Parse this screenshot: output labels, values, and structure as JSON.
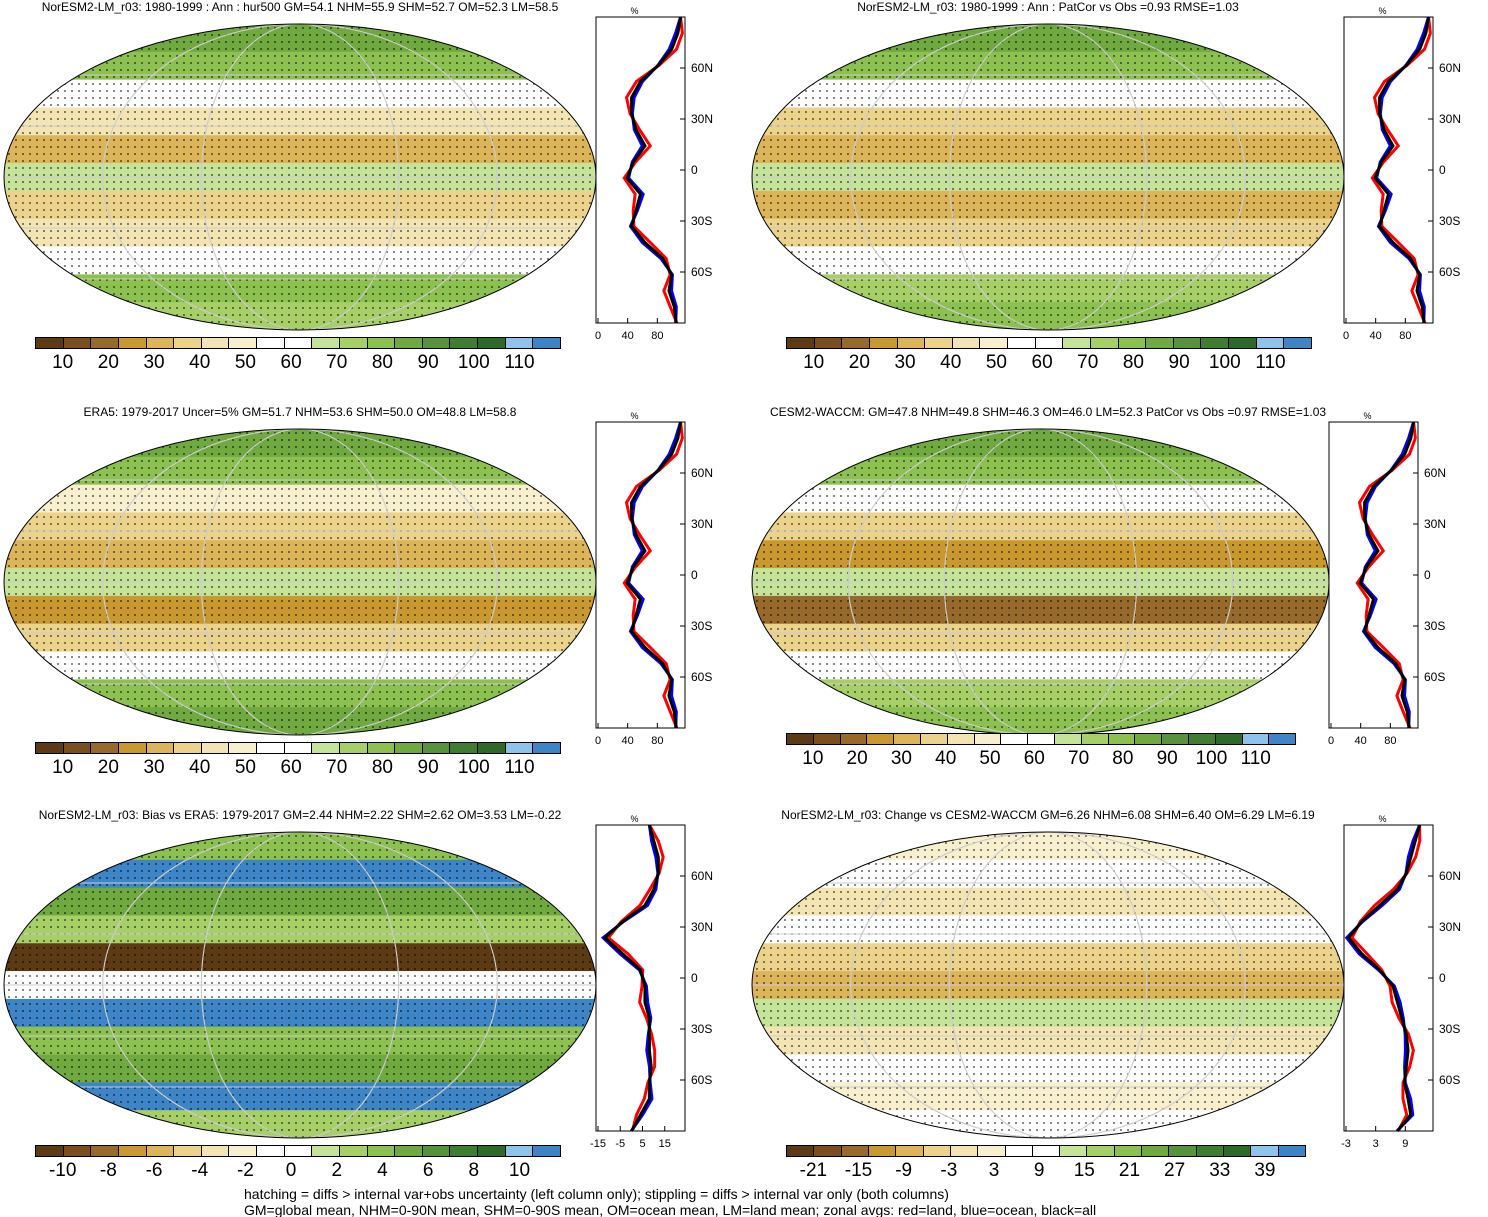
{
  "panels": [
    {
      "title": "NorESM2-LM_r03: 1980-1999 : Ann : hur500 GM=54.1 NHM=55.9 SHM=52.7 OM=52.3 LM=58.5",
      "cb_labels": [
        "10",
        "20",
        "30",
        "40",
        "50",
        "60",
        "70",
        "80",
        "90",
        "100",
        "110"
      ],
      "zonal_x_ticks": [
        "0",
        "40",
        "80"
      ],
      "zonal_xlabel": "%"
    },
    {
      "title": "NorESM2-LM_r03: 1980-1999 : Ann : PatCor vs Obs =0.93 RMSE=1.03",
      "cb_labels": [
        "10",
        "20",
        "30",
        "40",
        "50",
        "60",
        "70",
        "80",
        "90",
        "100",
        "110"
      ],
      "zonal_x_ticks": [
        "0",
        "40",
        "80"
      ],
      "zonal_xlabel": "%"
    },
    {
      "title": "ERA5: 1979-2017 Uncer=5% GM=51.7 NHM=53.6 SHM=50.0 OM=48.8 LM=58.8",
      "cb_labels": [
        "10",
        "20",
        "30",
        "40",
        "50",
        "60",
        "70",
        "80",
        "90",
        "100",
        "110"
      ],
      "zonal_x_ticks": [
        "0",
        "40",
        "80"
      ],
      "zonal_xlabel": "%"
    },
    {
      "title": "CESM2-WACCM: GM=47.8 NHM=49.8 SHM=46.3 OM=46.0 LM=52.3 PatCor vs Obs =0.97 RMSE=1.03",
      "cb_labels": [
        "10",
        "20",
        "30",
        "40",
        "50",
        "60",
        "70",
        "80",
        "90",
        "100",
        "110"
      ],
      "zonal_x_ticks": [
        "0",
        "40",
        "80"
      ],
      "zonal_xlabel": "%"
    },
    {
      "title": "NorESM2-LM_r03: Bias vs ERA5: 1979-2017 GM=2.44 NHM=2.22 SHM=2.62 OM=3.53 LM=-0.22",
      "cb_labels": [
        "-10",
        "-8",
        "-6",
        "-4",
        "-2",
        "0",
        "2",
        "4",
        "6",
        "8",
        "10"
      ],
      "zonal_x_ticks": [
        "-15",
        "-5",
        "5",
        "15"
      ],
      "zonal_xlabel": "%"
    },
    {
      "title": "NorESM2-LM_r03: Change vs CESM2-WACCM GM=6.26 NHM=6.08 SHM=6.40 OM=6.29 LM=6.19",
      "cb_labels": [
        "-21",
        "-15",
        "-9",
        "-3",
        "3",
        "9",
        "15",
        "21",
        "27",
        "33",
        "39"
      ],
      "zonal_x_ticks": [
        "-3",
        "3",
        "9"
      ],
      "zonal_xlabel": "%"
    }
  ],
  "lat_ticks": [
    "60N",
    "30N",
    "0",
    "30S",
    "60S"
  ],
  "colors": {
    "abs_scale": [
      "#5c3a14",
      "#7a4f1d",
      "#97692a",
      "#c9992f",
      "#dcb55a",
      "#ebd38c",
      "#f3e5b3",
      "#f8efcf",
      "#ffffff",
      "#ffffff",
      "#c6e39a",
      "#a6d067",
      "#8cc050",
      "#6fa93f",
      "#57933a",
      "#3f7d31",
      "#2d6a2a",
      "#8ec4ec",
      "#3d85c6"
    ],
    "land_line": "#ff0000",
    "ocean_line": "#0000ff",
    "all_line": "#000000"
  },
  "footer": {
    "line1": "hatching = diffs > internal var+obs uncertainty (left column only); stippling = diffs > internal var only (both columns)",
    "line2": "GM=global mean, NHM=0-90N mean, SHM=0-90S mean, OM=ocean mean, LM=land mean; zonal avgs: red=land, blue=ocean, black=all"
  }
}
